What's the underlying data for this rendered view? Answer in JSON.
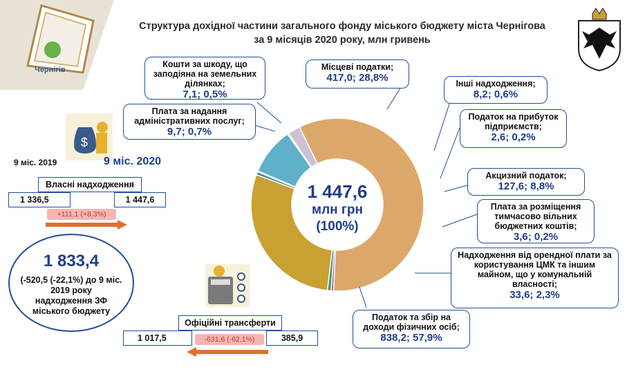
{
  "title_line1": "Структура дохідної частини загального фонду міського бюджету міста Чернігова",
  "title_line2": "за 9 місяців 2020 року, млн гривень",
  "logo_text": "Чернігів",
  "colors": {
    "accent": "#1f4e9a",
    "arrow": "#e0702e",
    "pink": "#f5b5b5",
    "pink_text": "#c0392b"
  },
  "left": {
    "period_prev": "9 міс. 2019",
    "period_curr": "9 міс. 2020",
    "own": {
      "label": "Власні надходження",
      "prev": "1 336,5",
      "curr": "1 447,6",
      "delta": "+111,1 (+8,3%)"
    },
    "total": {
      "value": "1 833,4",
      "desc1": "(-520,5 (-22,1%) до 9 міс.",
      "desc2": "2019 року",
      "desc3": "надходження ЗФ",
      "desc4": "міського бюджету"
    },
    "transfers": {
      "label": "Офіційні трансферти",
      "prev": "1 017,5",
      "curr": "385,9",
      "delta": "-631,6 (-62,1%)"
    }
  },
  "center": {
    "line1": "1 447,6",
    "line2": "млн грн",
    "line3": "(100%)"
  },
  "callouts": [
    {
      "label": "Кошти за шкоду, що заподіяна на земельних ділянках;",
      "val": "7,1; 0,5%"
    },
    {
      "label": "Плата за надання адміністративних послуг;",
      "val": "9,7; 0,7%"
    },
    {
      "label": "Місцеві податки;",
      "val": "417,0; 28,8%"
    },
    {
      "label": "Інші надходження;",
      "val": "8,2; 0,6%"
    },
    {
      "label": "Податок на прибуток підприємств;",
      "val": "2,6; 0,2%"
    },
    {
      "label": "Акцизний податок;",
      "val": "127,6; 8,8%"
    },
    {
      "label": "Плата за розміщення тимчасово вільних бюджетних коштів;",
      "val": "3,6; 0,2%"
    },
    {
      "label": "Надходження від орендної плати за користування ЦМК та іншим майном, що у комунальній власності;",
      "val": "33,6; 2,3%"
    },
    {
      "label": "Податок та збір на доходи фізичних осіб;",
      "val": "838,2; 57,9%"
    }
  ],
  "chart_data": {
    "type": "pie",
    "donut": true,
    "categories": [
      "Податок та збір на доходи фізичних осіб",
      "Кошти за шкоду, що заподіяна на земельних ділянках",
      "Плата за надання адміністративних послуг",
      "Місцеві податки",
      "Інші надходження",
      "Податок на прибуток підприємств",
      "Акцизний податок",
      "Плата за розміщення тимчасово вільних бюджетних коштів",
      "Надходження від орендної плати за користування ЦМК та іншим майном, що у комунальній власності"
    ],
    "values": [
      838.2,
      7.1,
      9.7,
      417.0,
      8.2,
      2.6,
      127.6,
      3.6,
      33.6
    ],
    "colors": [
      "#dca86a",
      "#c05fa8",
      "#3a9a6a",
      "#c9a032",
      "#2e8fa0",
      "#f0e83a",
      "#5fb0c8",
      "#8ec63f",
      "#cfc0d8"
    ],
    "start_angle_deg": 334
  }
}
